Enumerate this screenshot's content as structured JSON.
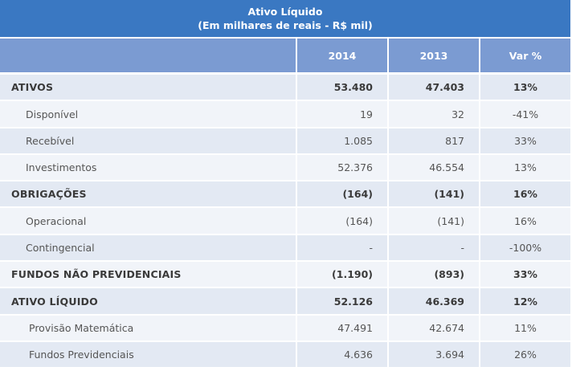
{
  "title": {
    "line1": "Ativo Líquido",
    "line2": "(Em milhares de reais - R$ mil)"
  },
  "header": {
    "col_label": "",
    "col_2014": "2014",
    "col_2013": "2013",
    "col_var": "Var %"
  },
  "rows": [
    {
      "label": "ATIVOS",
      "v2014": "53.480",
      "v2013": "47.403",
      "var": "13%",
      "bold": true
    },
    {
      "label": "Disponível",
      "v2014": "19",
      "v2013": "32",
      "var": "-41%",
      "bold": false
    },
    {
      "label": "Recebível",
      "v2014": "1.085",
      "v2013": "817",
      "var": "33%",
      "bold": false
    },
    {
      "label": "Investimentos",
      "v2014": "52.376",
      "v2013": "46.554",
      "var": "13%",
      "bold": false
    },
    {
      "label": "OBRIGAÇÕES",
      "v2014": "(164)",
      "v2013": "(141)",
      "var": "16%",
      "bold": true
    },
    {
      "label": "Operacional",
      "v2014": "(164)",
      "v2013": "(141)",
      "var": "16%",
      "bold": false
    },
    {
      "label": "Contingencial",
      "v2014": "-",
      "v2013": "-",
      "var": "-100%",
      "bold": false
    },
    {
      "label": "FUNDOS NÃO PREVIDENCIAIS",
      "v2014": "(1.190)",
      "v2013": "(893)",
      "var": "33%",
      "bold": true
    },
    {
      "label": "ATIVO LÍQUIDO",
      "v2014": "52.126",
      "v2013": "46.369",
      "var": "12%",
      "bold": true
    },
    {
      "label": "Provisão Matemática",
      "v2014": "47.491",
      "v2013": "42.674",
      "var": "11%",
      "bold": false
    },
    {
      "label": "Fundos Previdenciais",
      "v2014": "4.636",
      "v2013": "3.694",
      "var": "26%",
      "bold": false
    }
  ],
  "colors": {
    "title_bg": "#3a78c2",
    "header_bg": "#7b9bd2",
    "row_odd_bg": "#e3e9f3",
    "row_even_bg": "#f1f4f9",
    "separator": "#ffffff"
  }
}
